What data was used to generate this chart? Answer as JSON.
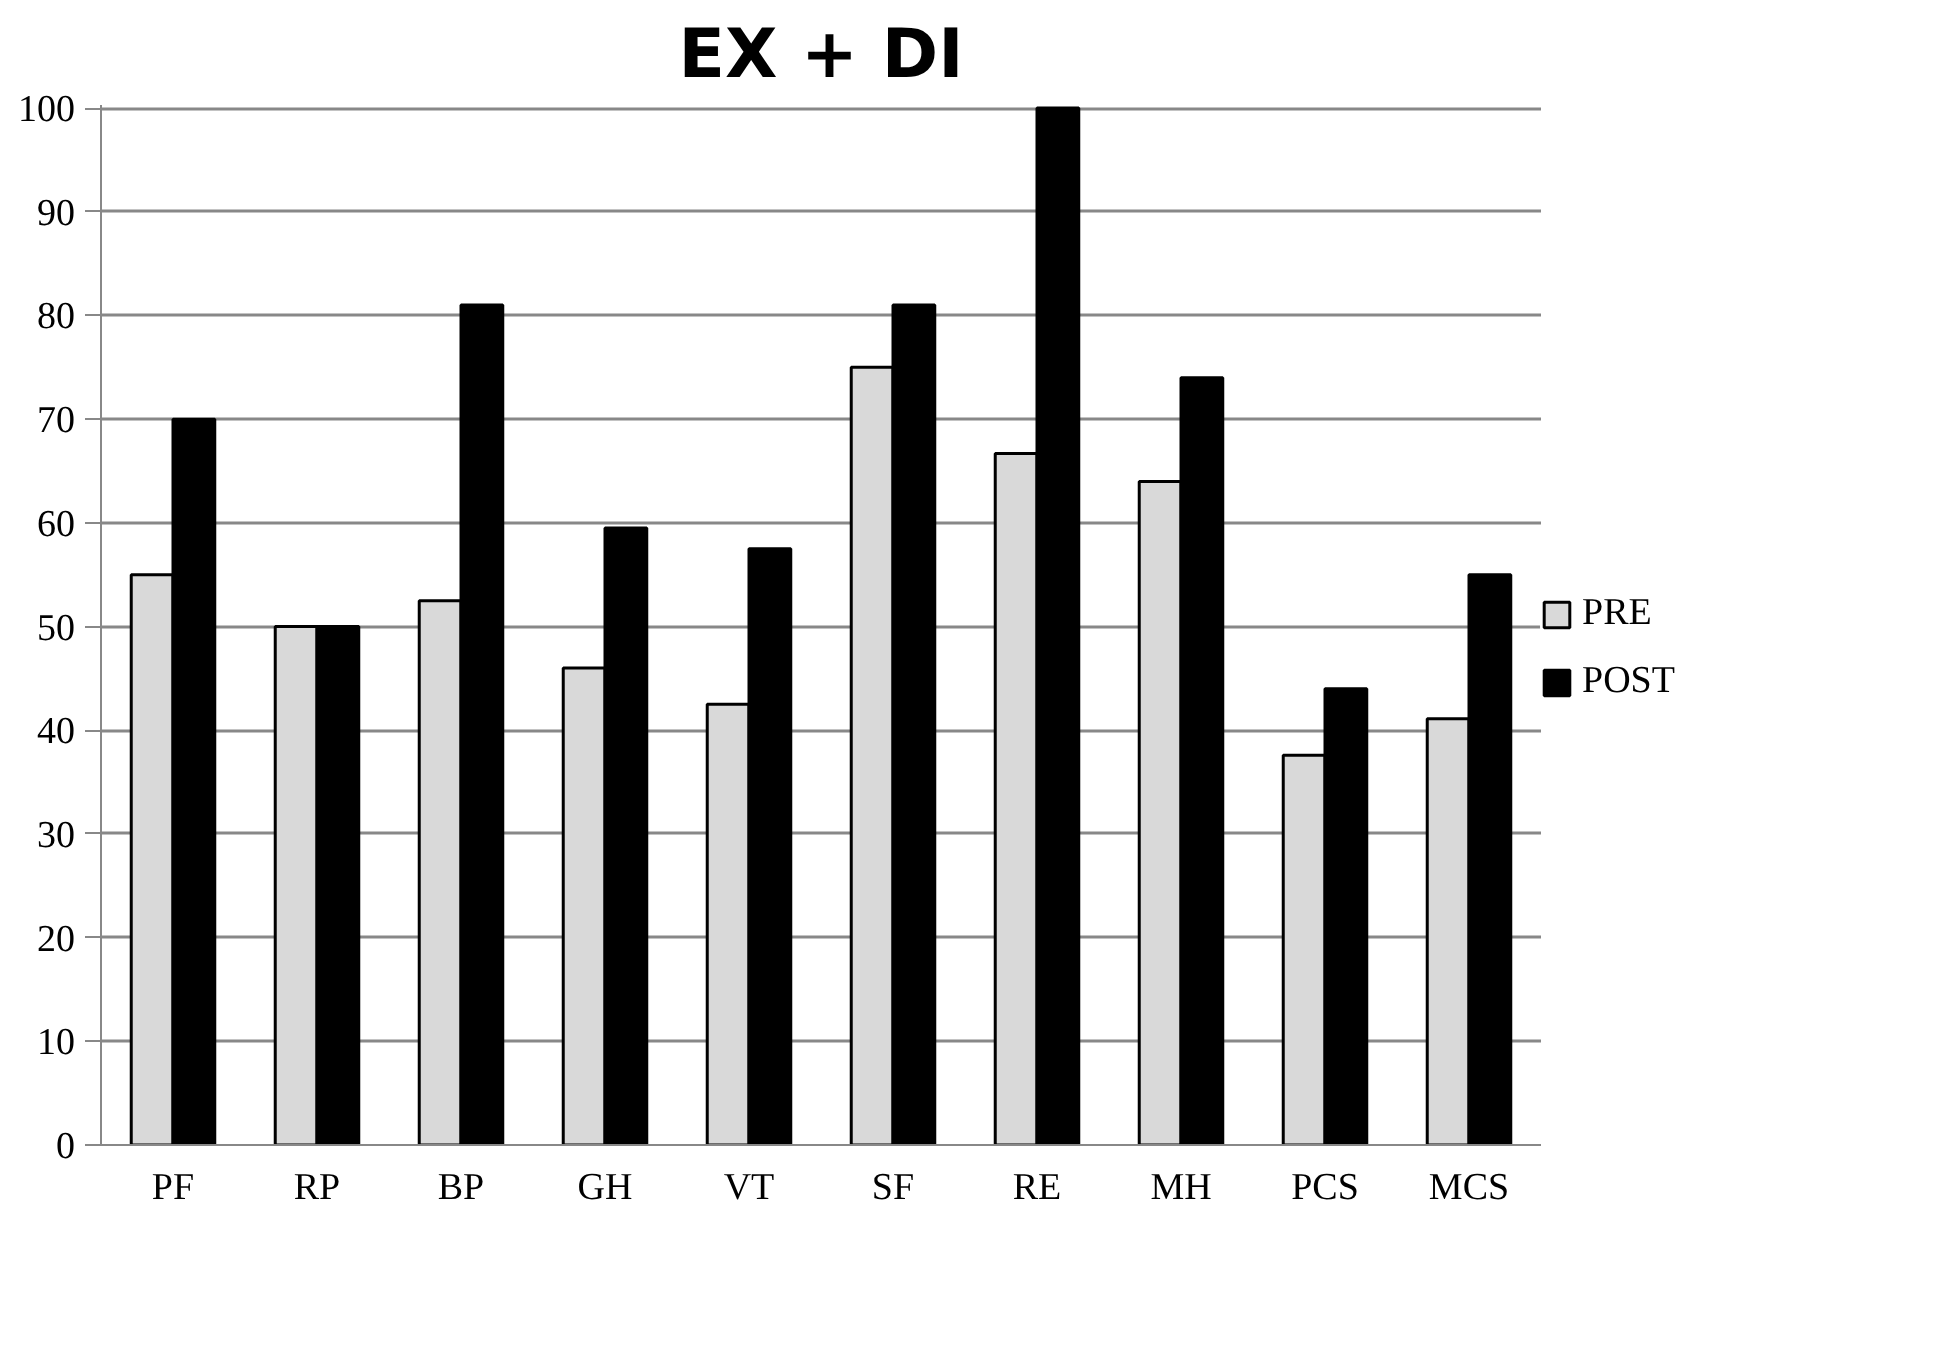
{
  "chart_data": {
    "type": "bar",
    "title": "EX + DI",
    "categories": [
      "PF",
      "RP",
      "BP",
      "GH",
      "VT",
      "SF",
      "RE",
      "MH",
      "PCS",
      "MCS"
    ],
    "series": [
      {
        "name": "PRE",
        "color": "#d9d9d9",
        "values": [
          55,
          50,
          52.5,
          46,
          42.5,
          75,
          66.7,
          64,
          37.6,
          41.1
        ]
      },
      {
        "name": "POST",
        "color": "#000000",
        "values": [
          70,
          50,
          81,
          59.5,
          57.5,
          81,
          100,
          74,
          44,
          55
        ]
      }
    ],
    "ylim": [
      0,
      100
    ],
    "yticks": [
      0,
      10,
      20,
      30,
      40,
      50,
      60,
      70,
      80,
      90,
      100
    ],
    "grid": "y",
    "legend": "right"
  }
}
